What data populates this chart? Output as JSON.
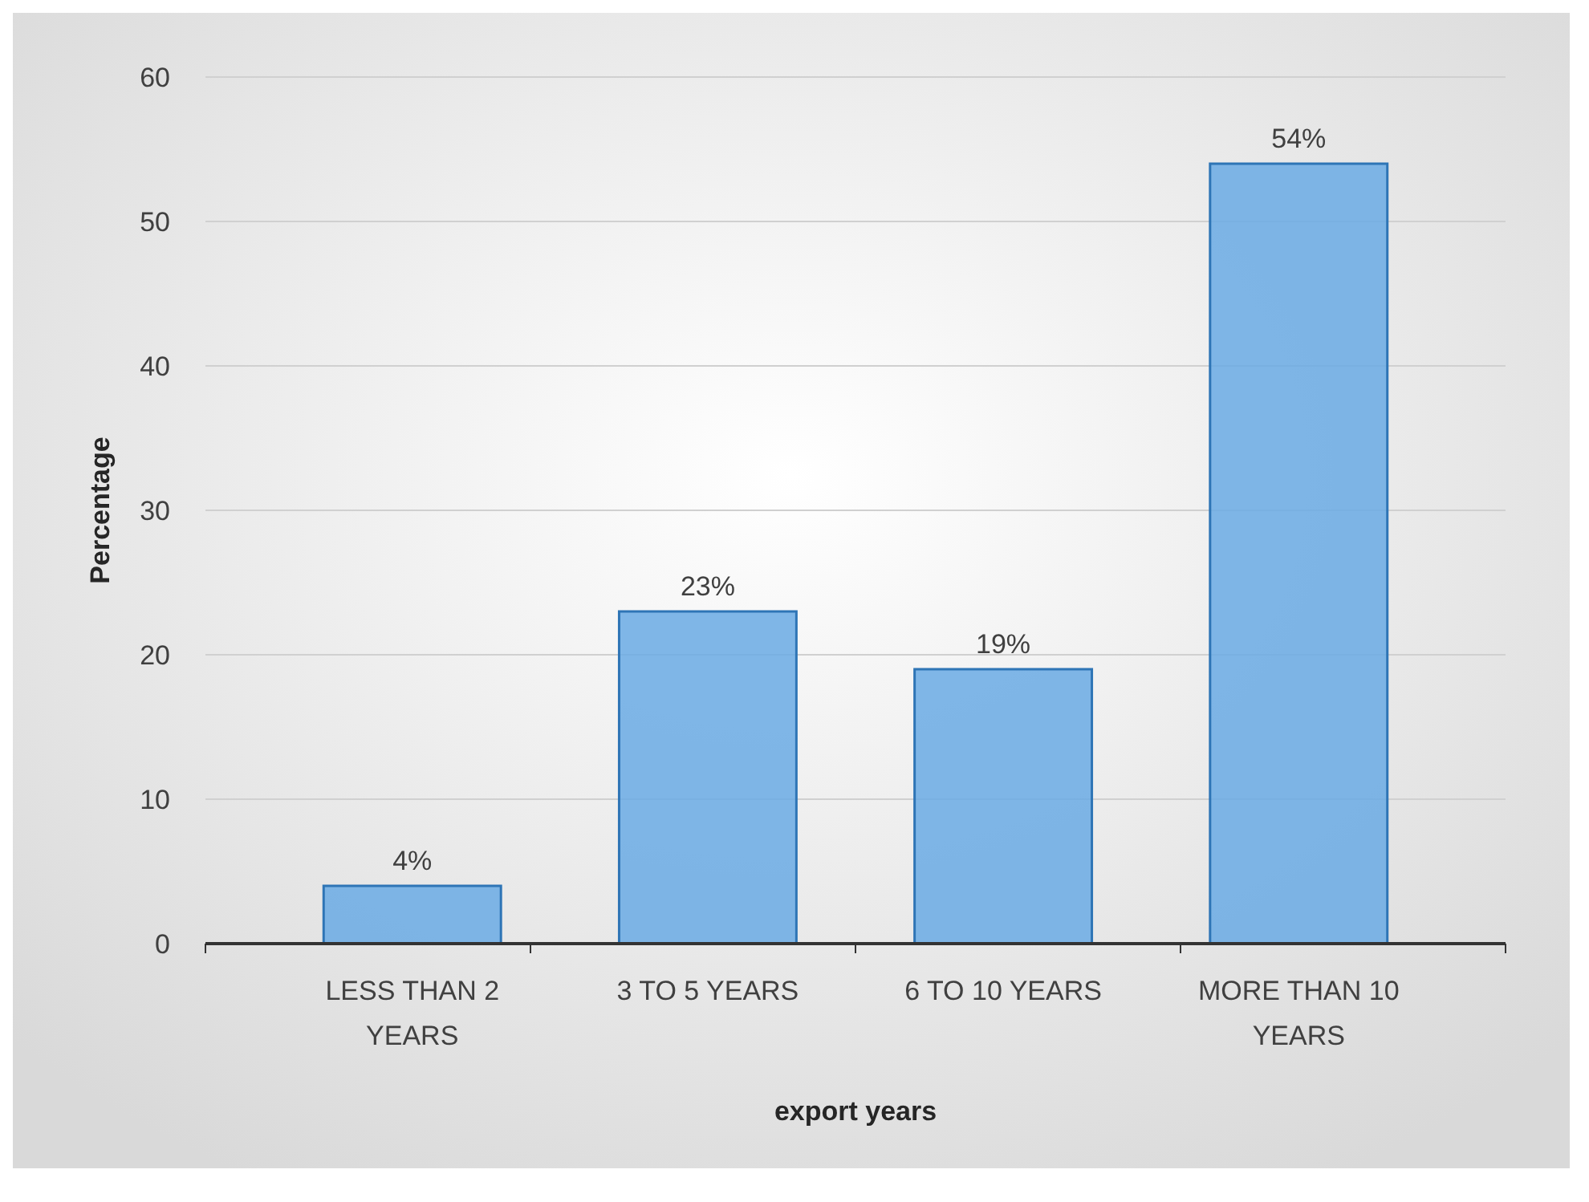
{
  "chart_data": {
    "type": "bar",
    "xlabel": "export years",
    "ylabel": "Percentage",
    "categories": [
      "LESS THAN 2 YEARS",
      "3 TO 5 YEARS",
      "6 TO 10 YEARS",
      "MORE THAN 10 YEARS"
    ],
    "values": [
      4,
      23,
      19,
      54
    ],
    "value_labels": [
      "4%",
      "23%",
      "19%",
      "54%"
    ],
    "color": "#6aaae4",
    "ylim": [
      0,
      60
    ],
    "yticks": [
      0,
      10,
      20,
      30,
      40,
      50,
      60
    ],
    "grid": "y"
  }
}
